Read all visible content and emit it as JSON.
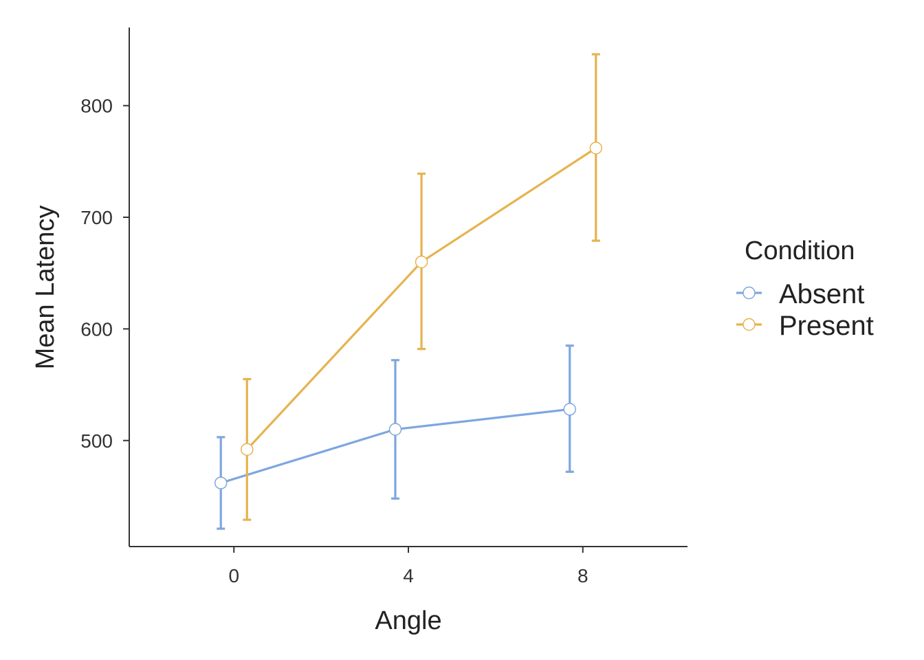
{
  "chart_data": {
    "type": "line",
    "xlabel": "Angle",
    "ylabel": "Mean Latency",
    "x": [
      0,
      4,
      8
    ],
    "xlim": [
      -2.4,
      10.4
    ],
    "ylim": [
      405,
      870
    ],
    "x_ticks": [
      "0",
      "4",
      "8"
    ],
    "y_ticks": [
      "500",
      "600",
      "700",
      "800"
    ],
    "grid": false,
    "legend": {
      "title": "Condition",
      "placement": "right"
    },
    "series": [
      {
        "name": "Absent",
        "color": "#7ea6e0",
        "values": [
          462,
          510,
          528
        ],
        "error_low": [
          421,
          448,
          472
        ],
        "error_high": [
          503,
          572,
          585
        ]
      },
      {
        "name": "Present",
        "color": "#e6b34f",
        "values": [
          492,
          660,
          762
        ],
        "error_low": [
          429,
          582,
          679
        ],
        "error_high": [
          555,
          739,
          846
        ]
      }
    ]
  }
}
